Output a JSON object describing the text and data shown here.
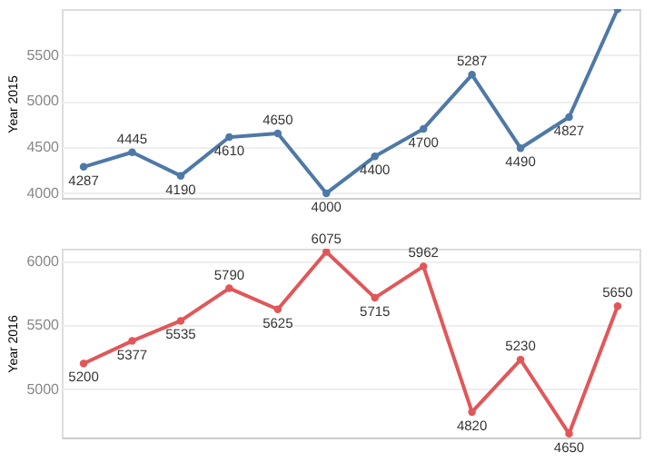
{
  "chart_data": [
    {
      "type": "line",
      "categories": [
        null,
        null,
        null,
        null,
        null,
        null,
        null,
        null,
        null,
        null,
        null,
        null
      ],
      "ylabel": "Year 2015",
      "series": [
        {
          "color": "#4e79a7",
          "values": [
            4287,
            4445,
            4190,
            4610,
            4650,
            4000,
            4400,
            4700,
            5287,
            4490,
            4827,
            6000
          ]
        }
      ],
      "value_labels": [
        "4287",
        "4445",
        "4190",
        "4610",
        "4650",
        "4000",
        "4400",
        "4700",
        "5287",
        "4490",
        "4827",
        null
      ],
      "ylim": [
        3950,
        6000
      ],
      "yticks": [
        4000,
        4500,
        5000,
        5500
      ],
      "grid": "y",
      "marker": "circle",
      "line_style": "solid",
      "tick_labels": "y"
    },
    {
      "type": "line",
      "categories": [
        null,
        null,
        null,
        null,
        null,
        null,
        null,
        null,
        null,
        null,
        null,
        null
      ],
      "ylabel": "Year 2016",
      "series": [
        {
          "color": "#e15759",
          "values": [
            5200,
            5377,
            5535,
            5790,
            5625,
            6075,
            5715,
            5962,
            4820,
            5230,
            4650,
            5650
          ]
        }
      ],
      "data_labels": true,
      "ylim": [
        4620,
        6100
      ],
      "yticks": [
        5000,
        5500,
        6000
      ],
      "grid": "y",
      "marker": "circle",
      "line_style": "solid",
      "tick_labels": "y"
    }
  ]
}
